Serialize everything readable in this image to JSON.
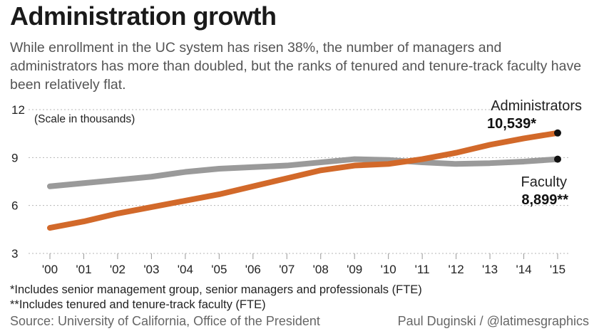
{
  "title": "Administration growth",
  "subtitle": "While enrollment in the UC system has risen 38%, the number of managers and administrators has more than doubled, but the ranks of tenured and tenure-track faculty have been relatively flat.",
  "footnotes": [
    "*Includes senior management group, senior managers and professionals (FTE)",
    "**Includes tenured and tenure-track faculty (FTE)"
  ],
  "source": "Source: University of California, Office of the President",
  "credit": "Paul Duginski / @latimesgraphics",
  "chart_data": {
    "type": "line",
    "scale_note": "(Scale in thousands)",
    "x": [
      "'00",
      "'01",
      "'02",
      "'03",
      "'04",
      "'05",
      "'06",
      "'07",
      "'08",
      "'09",
      "'10",
      "'11",
      "'12",
      "'13",
      "'14",
      "'15"
    ],
    "yticks": [
      3,
      6,
      9,
      12
    ],
    "ylim": [
      3,
      12
    ],
    "grid": "horizontal dotted",
    "series": [
      {
        "name": "Administrators",
        "color": "#d2692a",
        "end_label": "10,539*",
        "values": [
          4.6,
          5.0,
          5.5,
          5.9,
          6.3,
          6.7,
          7.2,
          7.7,
          8.2,
          8.5,
          8.6,
          8.9,
          9.3,
          9.8,
          10.2,
          10.539
        ]
      },
      {
        "name": "Faculty",
        "color": "#9a9a9a",
        "end_label": "8,899**",
        "values": [
          7.2,
          7.4,
          7.6,
          7.8,
          8.1,
          8.3,
          8.4,
          8.5,
          8.7,
          8.9,
          8.85,
          8.7,
          8.6,
          8.65,
          8.75,
          8.899
        ]
      }
    ]
  }
}
